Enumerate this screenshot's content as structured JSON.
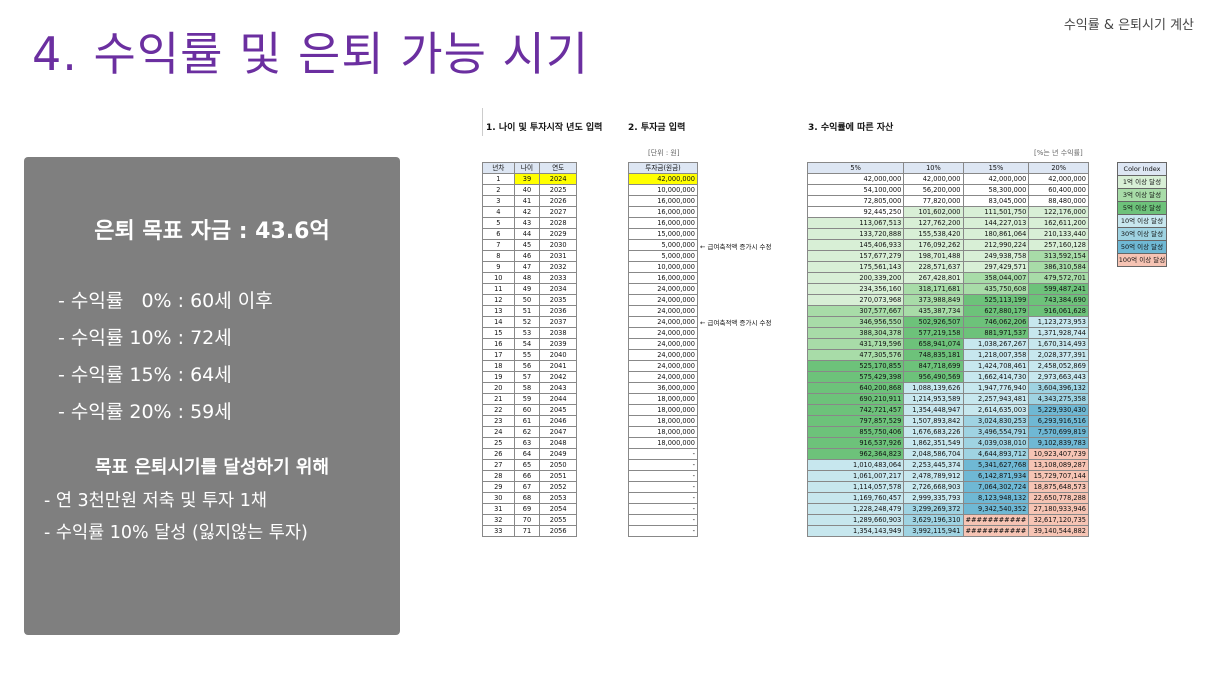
{
  "header_tag": "수익률 & 은퇴시기 계산",
  "title": "4. 수익률 및 은퇴 가능 시기",
  "panel": {
    "goal": "은퇴 목표 자금 : 43.6억",
    "rates": [
      "- 수익률   0% : 60세 이후",
      "- 수익률 10% : 72세",
      "- 수익률 15% : 64세",
      "- 수익률 20% : 59세"
    ],
    "achieve_title": "목표 은퇴시기를 달성하기 위해",
    "achieve_items": [
      "- 연 3천만원 저축 및 투자 1채",
      "- 수익률 10% 달성 (잃지않는 투자)"
    ]
  },
  "sheet": {
    "sections": {
      "age": "1. 나이 및 투자시작 년도 입력",
      "invest": "2. 투자금 입력",
      "assets": "3. 수익률에 따른 자산"
    },
    "unit_note": "[단위 : 원]",
    "rate_note": "[%는 년 수익률]",
    "age_headers": [
      "년차",
      "나이",
      "연도"
    ],
    "invest_header": "투자금(원금)",
    "rate_headers": [
      "5%",
      "10%",
      "15%",
      "20%"
    ],
    "comment_text": "← 급여축적액 증가시 수정",
    "legend_title": "Color Index",
    "legend": [
      {
        "label": "1억 이상 달성",
        "color": "#d8efd6"
      },
      {
        "label": "3억 이상 달성",
        "color": "#a8dca8"
      },
      {
        "label": "5억 이상 달성",
        "color": "#6dc27a"
      },
      {
        "label": "10억 이상 달성",
        "color": "#c7e7ee"
      },
      {
        "label": "30억 이상 달성",
        "color": "#9fd3e2"
      },
      {
        "label": "50억 이상 달성",
        "color": "#6fb8d4"
      },
      {
        "label": "100억 이상 달성",
        "color": "#f6c4b4"
      }
    ],
    "highlight_color": "#ffff00",
    "rows": [
      [
        "1",
        "39",
        "2024",
        "42,000,000",
        "42,000,000",
        "42,000,000",
        "42,000,000",
        "42,000,000"
      ],
      [
        "2",
        "40",
        "2025",
        "10,000,000",
        "54,100,000",
        "56,200,000",
        "58,300,000",
        "60,400,000"
      ],
      [
        "3",
        "41",
        "2026",
        "16,000,000",
        "72,805,000",
        "77,820,000",
        "83,045,000",
        "88,480,000"
      ],
      [
        "4",
        "42",
        "2027",
        "16,000,000",
        "92,445,250",
        "101,602,000",
        "111,501,750",
        "122,176,000"
      ],
      [
        "5",
        "43",
        "2028",
        "16,000,000",
        "113,067,513",
        "127,762,200",
        "144,227,013",
        "162,611,200"
      ],
      [
        "6",
        "44",
        "2029",
        "15,000,000",
        "133,720,888",
        "155,538,420",
        "180,861,064",
        "210,133,440"
      ],
      [
        "7",
        "45",
        "2030",
        "5,000,000",
        "145,406,933",
        "176,092,262",
        "212,990,224",
        "257,160,128"
      ],
      [
        "8",
        "46",
        "2031",
        "5,000,000",
        "157,677,279",
        "198,701,488",
        "249,938,758",
        "313,592,154"
      ],
      [
        "9",
        "47",
        "2032",
        "10,000,000",
        "175,561,143",
        "228,571,637",
        "297,429,571",
        "386,310,584"
      ],
      [
        "10",
        "48",
        "2033",
        "16,000,000",
        "200,339,200",
        "267,428,801",
        "358,044,007",
        "479,572,701"
      ],
      [
        "11",
        "49",
        "2034",
        "24,000,000",
        "234,356,160",
        "318,171,681",
        "435,750,608",
        "599,487,241"
      ],
      [
        "12",
        "50",
        "2035",
        "24,000,000",
        "270,073,968",
        "373,988,849",
        "525,113,199",
        "743,384,690"
      ],
      [
        "13",
        "51",
        "2036",
        "24,000,000",
        "307,577,667",
        "435,387,734",
        "627,880,179",
        "916,061,628"
      ],
      [
        "14",
        "52",
        "2037",
        "24,000,000",
        "346,956,550",
        "502,926,507",
        "746,062,206",
        "1,123,273,953"
      ],
      [
        "15",
        "53",
        "2038",
        "24,000,000",
        "388,304,378",
        "577,219,158",
        "881,971,537",
        "1,371,928,744"
      ],
      [
        "16",
        "54",
        "2039",
        "24,000,000",
        "431,719,596",
        "658,941,074",
        "1,038,267,267",
        "1,670,314,493"
      ],
      [
        "17",
        "55",
        "2040",
        "24,000,000",
        "477,305,576",
        "748,835,181",
        "1,218,007,358",
        "2,028,377,391"
      ],
      [
        "18",
        "56",
        "2041",
        "24,000,000",
        "525,170,855",
        "847,718,699",
        "1,424,708,461",
        "2,458,052,869"
      ],
      [
        "19",
        "57",
        "2042",
        "24,000,000",
        "575,429,398",
        "956,490,569",
        "1,662,414,730",
        "2,973,663,443"
      ],
      [
        "20",
        "58",
        "2043",
        "36,000,000",
        "640,200,868",
        "1,088,139,626",
        "1,947,776,940",
        "3,604,396,132"
      ],
      [
        "21",
        "59",
        "2044",
        "18,000,000",
        "690,210,911",
        "1,214,953,589",
        "2,257,943,481",
        "4,343,275,358"
      ],
      [
        "22",
        "60",
        "2045",
        "18,000,000",
        "742,721,457",
        "1,354,448,947",
        "2,614,635,003",
        "5,229,930,430"
      ],
      [
        "23",
        "61",
        "2046",
        "18,000,000",
        "797,857,529",
        "1,507,893,842",
        "3,024,830,253",
        "6,293,916,516"
      ],
      [
        "24",
        "62",
        "2047",
        "18,000,000",
        "855,750,406",
        "1,676,683,226",
        "3,496,554,791",
        "7,570,699,819"
      ],
      [
        "25",
        "63",
        "2048",
        "18,000,000",
        "916,537,926",
        "1,862,351,549",
        "4,039,038,010",
        "9,102,839,783"
      ],
      [
        "26",
        "64",
        "2049",
        "-",
        "962,364,823",
        "2,048,586,704",
        "4,644,893,712",
        "10,923,407,739"
      ],
      [
        "27",
        "65",
        "2050",
        "-",
        "1,010,483,064",
        "2,253,445,374",
        "5,341,627,768",
        "13,108,089,287"
      ],
      [
        "28",
        "66",
        "2051",
        "-",
        "1,061,007,217",
        "2,478,789,912",
        "6,142,871,934",
        "15,729,707,144"
      ],
      [
        "29",
        "67",
        "2052",
        "-",
        "1,114,057,578",
        "2,726,668,903",
        "7,064,302,724",
        "18,875,648,573"
      ],
      [
        "30",
        "68",
        "2053",
        "-",
        "1,169,760,457",
        "2,999,335,793",
        "8,123,948,132",
        "22,650,778,288"
      ],
      [
        "31",
        "69",
        "2054",
        "-",
        "1,228,248,479",
        "3,299,269,372",
        "9,342,540,352",
        "27,180,933,946"
      ],
      [
        "32",
        "70",
        "2055",
        "-",
        "1,289,660,903",
        "3,629,196,310",
        "###########",
        "32,617,120,735"
      ],
      [
        "33",
        "71",
        "2056",
        "-",
        "1,354,143,949",
        "3,992,115,941",
        "###########",
        "39,140,544,882"
      ]
    ]
  }
}
